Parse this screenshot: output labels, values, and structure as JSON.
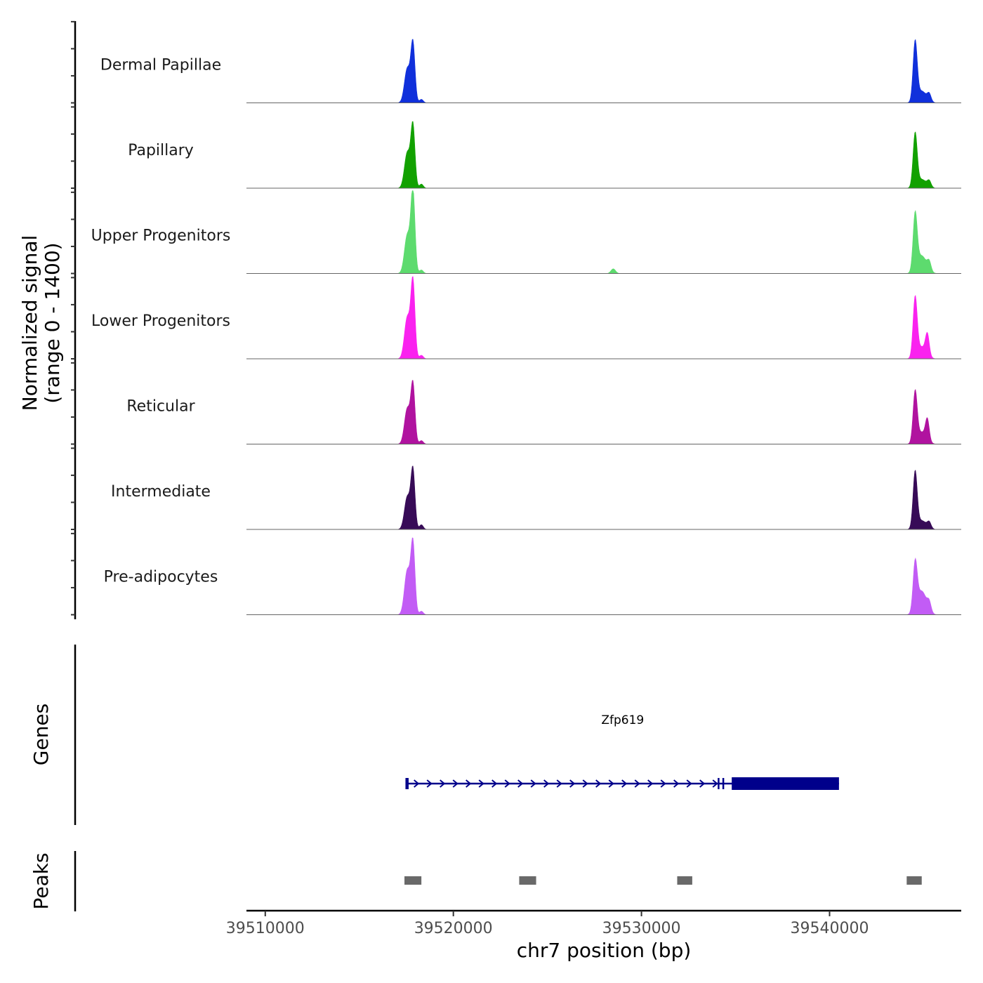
{
  "chart_data": {
    "type": "area",
    "title": "",
    "ylabel_line1": "Normalized signal",
    "ylabel_line2": "(range 0 - 1400)",
    "ylim": [
      0,
      1400
    ],
    "xlabel": "chr7 position (bp)",
    "xlim": [
      39509000,
      39547000
    ],
    "xticks": [
      39510000,
      39520000,
      39530000,
      39540000
    ],
    "xtick_labels": [
      "39510000",
      "39520000",
      "39530000",
      "39540000"
    ],
    "tracks": [
      {
        "name": "Dermal Papillae",
        "color": "#1030DB",
        "peaks": [
          {
            "center": 39517550,
            "width": 150,
            "height": 580
          },
          {
            "center": 39517850,
            "width": 110,
            "height": 1000
          },
          {
            "center": 39518300,
            "width": 100,
            "height": 60
          },
          {
            "center": 39544550,
            "width": 110,
            "height": 1000
          },
          {
            "center": 39544900,
            "width": 250,
            "height": 200
          },
          {
            "center": 39545300,
            "width": 100,
            "height": 120
          }
        ]
      },
      {
        "name": "Papillary",
        "color": "#12A100",
        "peaks": [
          {
            "center": 39517550,
            "width": 150,
            "height": 600
          },
          {
            "center": 39517850,
            "width": 110,
            "height": 1050
          },
          {
            "center": 39518300,
            "width": 100,
            "height": 70
          },
          {
            "center": 39544550,
            "width": 110,
            "height": 900
          },
          {
            "center": 39544900,
            "width": 250,
            "height": 150
          },
          {
            "center": 39545300,
            "width": 100,
            "height": 100
          }
        ]
      },
      {
        "name": "Upper Progenitors",
        "color": "#5DDB6E",
        "peaks": [
          {
            "center": 39517550,
            "width": 150,
            "height": 650
          },
          {
            "center": 39517850,
            "width": 110,
            "height": 1400
          },
          {
            "center": 39518300,
            "width": 100,
            "height": 60
          },
          {
            "center": 39528500,
            "width": 120,
            "height": 80
          },
          {
            "center": 39544550,
            "width": 110,
            "height": 950
          },
          {
            "center": 39544900,
            "width": 250,
            "height": 300
          },
          {
            "center": 39545300,
            "width": 100,
            "height": 150
          }
        ]
      },
      {
        "name": "Lower Progenitors",
        "color": "#FA22EF",
        "peaks": [
          {
            "center": 39517550,
            "width": 150,
            "height": 700
          },
          {
            "center": 39517850,
            "width": 110,
            "height": 1300
          },
          {
            "center": 39518300,
            "width": 100,
            "height": 60
          },
          {
            "center": 39544550,
            "width": 110,
            "height": 1000
          },
          {
            "center": 39544900,
            "width": 250,
            "height": 200
          },
          {
            "center": 39545200,
            "width": 100,
            "height": 350
          }
        ]
      },
      {
        "name": "Reticular",
        "color": "#B0139F",
        "peaks": [
          {
            "center": 39517550,
            "width": 150,
            "height": 600
          },
          {
            "center": 39517850,
            "width": 110,
            "height": 1000
          },
          {
            "center": 39518300,
            "width": 100,
            "height": 60
          },
          {
            "center": 39544550,
            "width": 110,
            "height": 850
          },
          {
            "center": 39544900,
            "width": 250,
            "height": 200
          },
          {
            "center": 39545200,
            "width": 100,
            "height": 350
          }
        ]
      },
      {
        "name": "Intermediate",
        "color": "#370B57",
        "peaks": [
          {
            "center": 39517550,
            "width": 150,
            "height": 550
          },
          {
            "center": 39517850,
            "width": 110,
            "height": 1000
          },
          {
            "center": 39518300,
            "width": 100,
            "height": 80
          },
          {
            "center": 39544550,
            "width": 110,
            "height": 950
          },
          {
            "center": 39544900,
            "width": 250,
            "height": 150
          },
          {
            "center": 39545300,
            "width": 100,
            "height": 100
          }
        ]
      },
      {
        "name": "Pre-adipocytes",
        "color": "#C25CF5",
        "peaks": [
          {
            "center": 39517550,
            "width": 150,
            "height": 750
          },
          {
            "center": 39517850,
            "width": 110,
            "height": 1200
          },
          {
            "center": 39518300,
            "width": 100,
            "height": 60
          },
          {
            "center": 39544550,
            "width": 110,
            "height": 800
          },
          {
            "center": 39544900,
            "width": 250,
            "height": 400
          },
          {
            "center": 39545300,
            "width": 100,
            "height": 150
          }
        ]
      }
    ],
    "genes_label": "Genes",
    "gene": {
      "name": "Zfp619",
      "start": 39517500,
      "end": 39540500,
      "coding_start": 39534800,
      "strand": "+",
      "color": "#00008B"
    },
    "peaks_label": "Peaks",
    "peaks": [
      {
        "start": 39517400,
        "end": 39518300
      },
      {
        "start": 39523500,
        "end": 39524400
      },
      {
        "start": 39531900,
        "end": 39532700
      },
      {
        "start": 39544100,
        "end": 39544900
      }
    ],
    "peak_color": "#696969"
  }
}
